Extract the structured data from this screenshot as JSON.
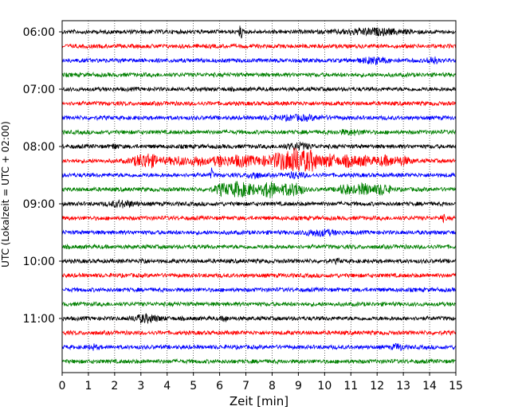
{
  "chart_data": {
    "type": "line",
    "title": "",
    "xlabel": "Zeit  [min]",
    "ylabel": "UTC (Lokalzeit = UTC + 02:00)",
    "xlim": [
      0,
      15
    ],
    "x_ticks": [
      "0",
      "1",
      "2",
      "3",
      "4",
      "5",
      "6",
      "7",
      "8",
      "9",
      "10",
      "11",
      "12",
      "13",
      "14",
      "15"
    ],
    "y_ticks": [
      {
        "label": "06:00",
        "trace": 0
      },
      {
        "label": "07:00",
        "trace": 4
      },
      {
        "label": "08:00",
        "trace": 8
      },
      {
        "label": "09:00",
        "trace": 12
      },
      {
        "label": "10:00",
        "trace": 16
      },
      {
        "label": "11:00",
        "trace": 20
      }
    ],
    "grid": "vertical dotted at each minute",
    "trace_interval_min": 15,
    "colors": [
      "#000000",
      "#ff0000",
      "#0000ff",
      "#008000"
    ],
    "traces": [
      {
        "start": "06:00",
        "color": "#000000",
        "events": [
          {
            "t": 6.8,
            "amp": 8,
            "dur": 0.06
          },
          {
            "t": 11.8,
            "amp": 3,
            "dur": 1.2
          }
        ]
      },
      {
        "start": "06:15",
        "color": "#ff0000",
        "events": []
      },
      {
        "start": "06:30",
        "color": "#0000ff",
        "events": [
          {
            "t": 11.9,
            "amp": 3,
            "dur": 0.5
          },
          {
            "t": 14.1,
            "amp": 4,
            "dur": 0.2
          }
        ]
      },
      {
        "start": "06:45",
        "color": "#008000",
        "events": []
      },
      {
        "start": "07:00",
        "color": "#000000",
        "events": []
      },
      {
        "start": "07:15",
        "color": "#ff0000",
        "events": []
      },
      {
        "start": "07:30",
        "color": "#0000ff",
        "events": [
          {
            "t": 9.0,
            "amp": 2,
            "dur": 1.0
          }
        ]
      },
      {
        "start": "07:45",
        "color": "#008000",
        "events": [
          {
            "t": 11.0,
            "amp": 2,
            "dur": 0.5
          }
        ]
      },
      {
        "start": "08:00",
        "color": "#000000",
        "events": [
          {
            "t": 2.0,
            "amp": 3,
            "dur": 0.1
          },
          {
            "t": 9.0,
            "amp": 3,
            "dur": 0.5
          }
        ]
      },
      {
        "start": "08:15",
        "color": "#ff0000",
        "events": [
          {
            "t": 3.2,
            "amp": 8,
            "dur": 0.5
          },
          {
            "t": 4.4,
            "amp": 4,
            "dur": 0.4
          },
          {
            "t": 5.2,
            "amp": 5,
            "dur": 0.3
          },
          {
            "t": 6.0,
            "amp": 5,
            "dur": 0.3
          },
          {
            "t": 6.8,
            "amp": 6,
            "dur": 0.5
          },
          {
            "t": 7.7,
            "amp": 4,
            "dur": 0.4
          },
          {
            "t": 8.3,
            "amp": 8,
            "dur": 0.3
          },
          {
            "t": 8.7,
            "amp": 7,
            "dur": 0.3
          },
          {
            "t": 9.0,
            "amp": 11,
            "dur": 0.3
          },
          {
            "t": 9.5,
            "amp": 11,
            "dur": 0.3
          },
          {
            "t": 10.2,
            "amp": 7,
            "dur": 0.3
          },
          {
            "t": 10.9,
            "amp": 6,
            "dur": 0.3
          },
          {
            "t": 11.5,
            "amp": 5,
            "dur": 0.3
          },
          {
            "t": 12.3,
            "amp": 5,
            "dur": 0.4
          },
          {
            "t": 13.0,
            "amp": 4,
            "dur": 0.3
          }
        ]
      },
      {
        "start": "08:30",
        "color": "#0000ff",
        "events": [
          {
            "t": 5.7,
            "amp": 7,
            "dur": 0.05
          },
          {
            "t": 7.3,
            "amp": 4,
            "dur": 0.2
          },
          {
            "t": 8.9,
            "amp": 3,
            "dur": 0.3
          }
        ]
      },
      {
        "start": "08:45",
        "color": "#008000",
        "events": [
          {
            "t": 6.1,
            "amp": 6,
            "dur": 0.3
          },
          {
            "t": 6.7,
            "amp": 8,
            "dur": 0.3
          },
          {
            "t": 7.2,
            "amp": 5,
            "dur": 0.3
          },
          {
            "t": 7.9,
            "amp": 9,
            "dur": 0.3
          },
          {
            "t": 8.6,
            "amp": 6,
            "dur": 0.3
          },
          {
            "t": 9.0,
            "amp": 6,
            "dur": 0.2
          },
          {
            "t": 10.8,
            "amp": 5,
            "dur": 0.3
          },
          {
            "t": 11.5,
            "amp": 6,
            "dur": 0.3
          },
          {
            "t": 12.2,
            "amp": 6,
            "dur": 0.3
          }
        ]
      },
      {
        "start": "09:00",
        "color": "#000000",
        "events": [
          {
            "t": 2.3,
            "amp": 3,
            "dur": 0.5
          }
        ]
      },
      {
        "start": "09:15",
        "color": "#ff0000",
        "events": [
          {
            "t": 14.5,
            "amp": 3,
            "dur": 0.1
          }
        ]
      },
      {
        "start": "09:30",
        "color": "#0000ff",
        "events": [
          {
            "t": 9.8,
            "amp": 3,
            "dur": 0.6
          }
        ]
      },
      {
        "start": "09:45",
        "color": "#008000",
        "events": []
      },
      {
        "start": "10:00",
        "color": "#000000",
        "events": [
          {
            "t": 3.1,
            "amp": 3,
            "dur": 0.1
          },
          {
            "t": 10.5,
            "amp": 2,
            "dur": 0.1
          }
        ]
      },
      {
        "start": "10:15",
        "color": "#ff0000",
        "events": []
      },
      {
        "start": "10:30",
        "color": "#0000ff",
        "events": []
      },
      {
        "start": "10:45",
        "color": "#008000",
        "events": []
      },
      {
        "start": "11:00",
        "color": "#000000",
        "events": [
          {
            "t": 3.2,
            "amp": 4,
            "dur": 0.5
          },
          {
            "t": 6.2,
            "amp": 3,
            "dur": 0.1
          }
        ]
      },
      {
        "start": "11:15",
        "color": "#ff0000",
        "events": []
      },
      {
        "start": "11:30",
        "color": "#0000ff",
        "events": [
          {
            "t": 1.2,
            "amp": 2,
            "dur": 0.2
          },
          {
            "t": 12.8,
            "amp": 3,
            "dur": 0.2
          }
        ]
      },
      {
        "start": "11:45",
        "color": "#008000",
        "events": []
      }
    ]
  }
}
